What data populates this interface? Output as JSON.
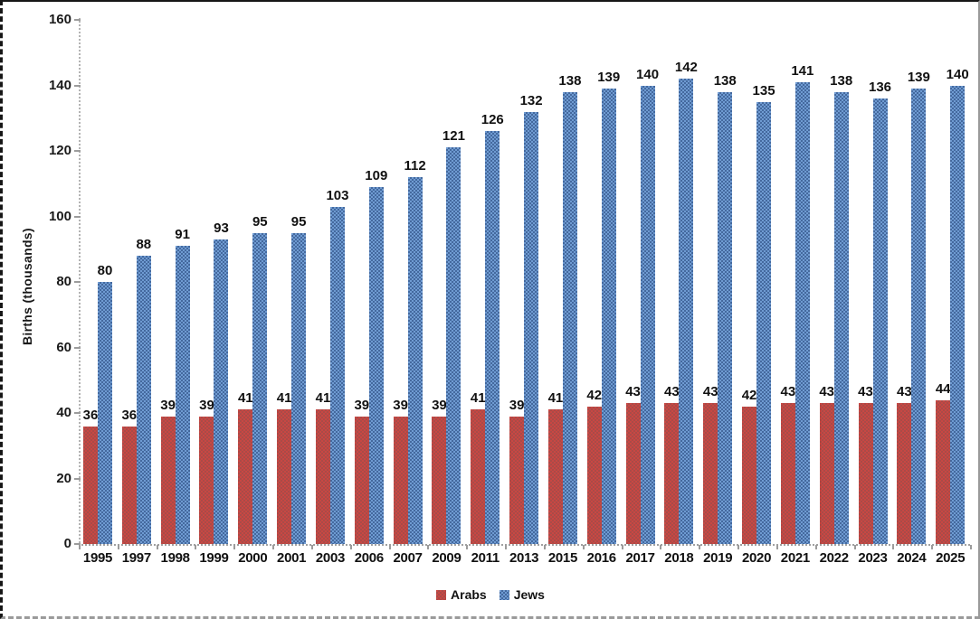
{
  "chart_data": {
    "type": "bar",
    "title": "",
    "xlabel": "",
    "ylabel": "Births (thousands)",
    "ylim": [
      0,
      160
    ],
    "yticks": [
      0,
      20,
      40,
      60,
      80,
      100,
      120,
      140,
      160
    ],
    "grid": false,
    "legend_position": "bottom",
    "categories": [
      "1995",
      "1997",
      "1998",
      "1999",
      "2000",
      "2001",
      "2003",
      "2006",
      "2007",
      "2009",
      "2011",
      "2013",
      "2015",
      "2016",
      "2017",
      "2018",
      "2019",
      "2020",
      "2021",
      "2022",
      "2023",
      "2024",
      "2025"
    ],
    "series": [
      {
        "name": "Arabs",
        "color": "#C84743",
        "color_light": "#A94B48",
        "values": [
          36,
          36,
          39,
          39,
          41,
          41,
          41,
          39,
          39,
          39,
          41,
          39,
          41,
          42,
          43,
          43,
          43,
          42,
          43,
          43,
          43,
          43,
          44
        ]
      },
      {
        "name": "Jews",
        "color": "#6F9BD2",
        "color_light": "#44699E",
        "values": [
          80,
          88,
          91,
          93,
          95,
          95,
          103,
          109,
          112,
          121,
          126,
          132,
          138,
          139,
          140,
          142,
          138,
          135,
          141,
          138,
          136,
          139,
          140
        ]
      }
    ]
  }
}
